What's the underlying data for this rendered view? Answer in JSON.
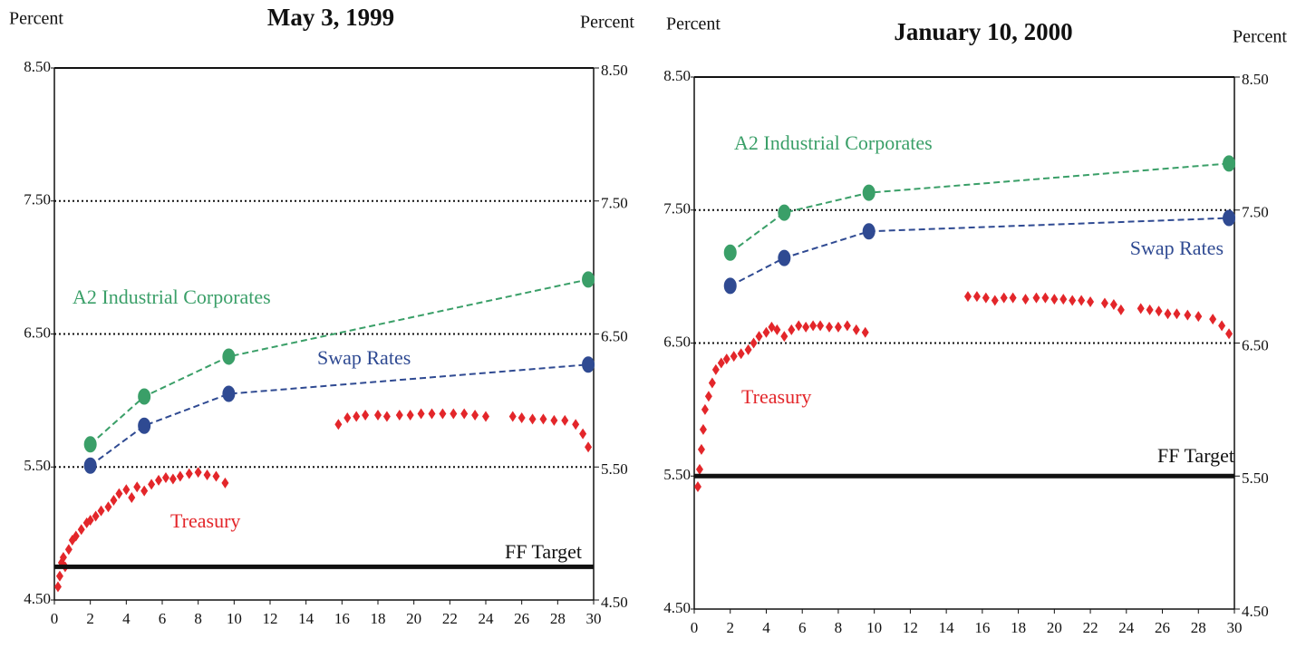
{
  "chart_data": [
    {
      "type": "line",
      "title": "May 3, 1999",
      "ylabel": "Percent",
      "y2label": "Percent",
      "xlim": [
        0,
        30
      ],
      "xticks": [
        0,
        2,
        4,
        6,
        8,
        10,
        12,
        14,
        16,
        18,
        20,
        22,
        24,
        26,
        28,
        30
      ],
      "ylim": [
        4.5,
        8.5
      ],
      "yticks": [
        {
          "value": 4.5,
          "label": "4.50"
        },
        {
          "value": 5.5,
          "label": "5.50"
        },
        {
          "value": 6.5,
          "label": "6.50"
        },
        {
          "value": 7.5,
          "label": "7.50"
        },
        {
          "value": 8.5,
          "label": "8.50"
        }
      ],
      "y2lim": [
        4.5,
        8.5
      ],
      "y2ticks": [
        {
          "value": 4.5,
          "label": "4.50"
        },
        {
          "value": 5.5,
          "label": "5.50"
        },
        {
          "value": 6.5,
          "label": "6.50"
        },
        {
          "value": 7.5,
          "label": "7.50"
        },
        {
          "value": 8.5,
          "label": "8.50"
        }
      ],
      "grid": "dotted",
      "series": [
        {
          "name": "A2 Industrial Corporates",
          "color": "#3a9f68",
          "line_style": "dashed",
          "marker": "circle",
          "x": [
            2,
            5,
            9.7,
            29.7
          ],
          "values": [
            5.67,
            6.03,
            6.33,
            6.91
          ]
        },
        {
          "name": "Swap Rates",
          "color": "#2f4a92",
          "line_style": "dashed",
          "marker": "circle",
          "x": [
            2,
            5,
            9.7,
            29.7
          ],
          "values": [
            5.51,
            5.81,
            6.05,
            6.27
          ]
        },
        {
          "name": "Treasury",
          "color": "#e3262a",
          "line_style": "none",
          "marker": "diamond",
          "x": [
            0.2,
            0.3,
            0.4,
            0.5,
            0.6,
            0.8,
            1.0,
            1.2,
            1.5,
            1.8,
            2.0,
            2.3,
            2.6,
            3.0,
            3.3,
            3.6,
            4.0,
            4.3,
            4.6,
            5.0,
            5.4,
            5.8,
            6.2,
            6.6,
            7.0,
            7.5,
            8.0,
            8.5,
            9.0,
            9.5,
            15.8,
            16.3,
            16.8,
            17.3,
            18,
            18.5,
            19.2,
            19.8,
            20.4,
            21,
            21.6,
            22.2,
            22.8,
            23.4,
            24,
            25.5,
            26,
            26.6,
            27.2,
            27.8,
            28.4,
            29,
            29.4,
            29.7
          ],
          "values": [
            4.6,
            4.68,
            4.78,
            4.82,
            4.75,
            4.88,
            4.95,
            4.98,
            5.03,
            5.08,
            5.1,
            5.13,
            5.17,
            5.2,
            5.25,
            5.3,
            5.33,
            5.27,
            5.35,
            5.32,
            5.37,
            5.4,
            5.42,
            5.41,
            5.43,
            5.45,
            5.46,
            5.44,
            5.43,
            5.38,
            5.82,
            5.87,
            5.88,
            5.89,
            5.89,
            5.88,
            5.89,
            5.89,
            5.9,
            5.9,
            5.9,
            5.9,
            5.9,
            5.89,
            5.88,
            5.88,
            5.87,
            5.86,
            5.86,
            5.85,
            5.85,
            5.82,
            5.75,
            5.65
          ]
        },
        {
          "name": "FF Target",
          "color": "#111111",
          "line_style": "solid",
          "marker": "none",
          "x": [
            0,
            30
          ],
          "values": [
            4.75,
            4.75
          ]
        }
      ]
    },
    {
      "type": "line",
      "title": "January 10, 2000",
      "ylabel": "Percent",
      "y2label": "Percent",
      "xlim": [
        0,
        30
      ],
      "xticks": [
        0,
        2,
        4,
        6,
        8,
        10,
        12,
        14,
        16,
        18,
        20,
        22,
        24,
        26,
        28,
        30
      ],
      "ylim": [
        4.5,
        8.5
      ],
      "yticks": [
        {
          "value": 4.5,
          "label": "4.50"
        },
        {
          "value": 5.5,
          "label": "5.50"
        },
        {
          "value": 6.5,
          "label": "6.50"
        },
        {
          "value": 7.5,
          "label": "7.50"
        },
        {
          "value": 8.5,
          "label": "8.50"
        }
      ],
      "y2lim": [
        4.5,
        8.5
      ],
      "y2ticks": [
        {
          "value": 4.5,
          "label": "4.50"
        },
        {
          "value": 5.5,
          "label": "5.50"
        },
        {
          "value": 6.5,
          "label": "6.50"
        },
        {
          "value": 7.5,
          "label": "7.50"
        },
        {
          "value": 8.5,
          "label": "8.50"
        }
      ],
      "grid": "dotted",
      "series": [
        {
          "name": "A2 Industrial Corporates",
          "color": "#3a9f68",
          "line_style": "dashed",
          "marker": "circle",
          "x": [
            2,
            5,
            9.7,
            29.7
          ],
          "values": [
            7.18,
            7.48,
            7.63,
            7.85
          ]
        },
        {
          "name": "Swap Rates",
          "color": "#2f4a92",
          "line_style": "dashed",
          "marker": "circle",
          "x": [
            2,
            5,
            9.7,
            29.7
          ],
          "values": [
            6.93,
            7.14,
            7.34,
            7.44
          ]
        },
        {
          "name": "Treasury",
          "color": "#e3262a",
          "line_style": "none",
          "marker": "diamond",
          "x": [
            0.2,
            0.3,
            0.4,
            0.5,
            0.6,
            0.8,
            1.0,
            1.2,
            1.5,
            1.8,
            2.2,
            2.6,
            3.0,
            3.3,
            3.6,
            4.0,
            4.3,
            4.6,
            5.0,
            5.4,
            5.8,
            6.2,
            6.6,
            7.0,
            7.5,
            8.0,
            8.5,
            9.0,
            9.5,
            15.2,
            15.7,
            16.2,
            16.7,
            17.2,
            17.7,
            18.4,
            19.0,
            19.5,
            20.0,
            20.5,
            21,
            21.5,
            22,
            22.8,
            23.3,
            23.7,
            24.8,
            25.3,
            25.8,
            26.3,
            26.8,
            27.4,
            28,
            28.8,
            29.3,
            29.7
          ],
          "values": [
            5.42,
            5.55,
            5.7,
            5.85,
            6.0,
            6.1,
            6.2,
            6.3,
            6.35,
            6.38,
            6.4,
            6.42,
            6.45,
            6.5,
            6.55,
            6.58,
            6.62,
            6.6,
            6.55,
            6.6,
            6.63,
            6.62,
            6.63,
            6.63,
            6.62,
            6.62,
            6.63,
            6.6,
            6.58,
            6.85,
            6.85,
            6.84,
            6.82,
            6.84,
            6.84,
            6.83,
            6.84,
            6.84,
            6.83,
            6.83,
            6.82,
            6.82,
            6.81,
            6.8,
            6.79,
            6.75,
            6.76,
            6.75,
            6.74,
            6.72,
            6.72,
            6.71,
            6.7,
            6.68,
            6.63,
            6.57
          ]
        },
        {
          "name": "FF Target",
          "color": "#111111",
          "line_style": "solid",
          "marker": "none",
          "x": [
            0,
            30
          ],
          "values": [
            5.5,
            5.5
          ]
        }
      ]
    }
  ]
}
